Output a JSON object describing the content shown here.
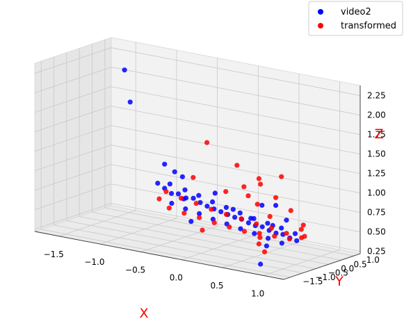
{
  "chart_data": {
    "type": "scatter",
    "title": "",
    "projection": "3d",
    "grid": true,
    "legend_placement": "top-right",
    "axis_label_color": "#ff0000",
    "xlabel": "X",
    "ylabel": "Y",
    "zlabel": "Z",
    "xlim": [
      -1.8,
      1.25
    ],
    "ylim": [
      -1.75,
      1.25
    ],
    "zlim": [
      0.22,
      2.38
    ],
    "x_ticks": [
      "−1.5",
      "−1.0",
      "−0.5",
      "0.0",
      "0.5",
      "1.0"
    ],
    "y_ticks": [
      "−1.5",
      "−1.0",
      "−0.5",
      "0.0",
      "0.5",
      "1.0"
    ],
    "z_ticks": [
      "0.25",
      "0.50",
      "0.75",
      "1.00",
      "1.25",
      "1.50",
      "1.75",
      "2.00",
      "2.25"
    ],
    "series": [
      {
        "name": "video2",
        "color": "#0000ff",
        "points": [
          [
            -1.45,
            0.65,
            2.1
          ],
          [
            -1.35,
            0.55,
            1.72
          ],
          [
            0.9,
            -1.3,
            0.53
          ],
          [
            0.95,
            -1.7,
            0.35
          ],
          [
            -0.85,
            0.3,
            1.05
          ],
          [
            -0.72,
            0.28,
            0.98
          ],
          [
            -0.6,
            0.2,
            0.95
          ],
          [
            -0.95,
            0.35,
            0.78
          ],
          [
            -0.85,
            0.3,
            0.74
          ],
          [
            -0.75,
            0.25,
            0.7
          ],
          [
            -0.65,
            0.2,
            0.72
          ],
          [
            -0.55,
            0.18,
            0.69
          ],
          [
            -0.45,
            0.15,
            0.71
          ],
          [
            -0.35,
            0.1,
            0.68
          ],
          [
            -0.25,
            0.05,
            0.66
          ],
          [
            -0.15,
            0.0,
            0.65
          ],
          [
            -0.05,
            -0.05,
            0.64
          ],
          [
            0.05,
            -0.1,
            0.63
          ],
          [
            0.15,
            -0.15,
            0.62
          ],
          [
            0.25,
            -0.2,
            0.62
          ],
          [
            0.35,
            -0.25,
            0.6
          ],
          [
            0.45,
            -0.3,
            0.59
          ],
          [
            0.55,
            -0.35,
            0.6
          ],
          [
            0.65,
            -0.4,
            0.58
          ],
          [
            0.75,
            -0.45,
            0.57
          ],
          [
            0.85,
            -0.5,
            0.58
          ],
          [
            0.95,
            -0.55,
            0.56
          ],
          [
            1.05,
            -0.6,
            0.55
          ],
          [
            -0.8,
            0.35,
            0.8
          ],
          [
            -0.6,
            0.3,
            0.77
          ],
          [
            -0.4,
            0.2,
            0.75
          ],
          [
            -0.2,
            0.1,
            0.72
          ],
          [
            0.0,
            0.0,
            0.7
          ],
          [
            0.2,
            -0.1,
            0.68
          ],
          [
            0.4,
            -0.2,
            0.66
          ],
          [
            0.6,
            -0.3,
            0.65
          ],
          [
            0.8,
            -0.4,
            0.64
          ],
          [
            1.0,
            -0.5,
            0.62
          ],
          [
            -0.7,
            0.1,
            0.6
          ],
          [
            -0.5,
            0.0,
            0.58
          ],
          [
            -0.3,
            -0.1,
            0.57
          ],
          [
            -0.1,
            -0.2,
            0.55
          ],
          [
            0.1,
            -0.3,
            0.54
          ],
          [
            0.3,
            -0.4,
            0.53
          ],
          [
            0.5,
            -0.5,
            0.52
          ],
          [
            0.7,
            -0.6,
            0.51
          ],
          [
            0.9,
            -0.7,
            0.5
          ],
          [
            -0.4,
            -0.1,
            0.45
          ],
          [
            0.5,
            -0.2,
            0.85
          ],
          [
            0.7,
            -0.3,
            0.9
          ],
          [
            -0.2,
            0.2,
            0.82
          ],
          [
            0.3,
            0.0,
            0.62
          ],
          [
            0.6,
            -0.1,
            0.6
          ],
          [
            -0.6,
            0.25,
            0.66
          ],
          [
            0.1,
            -0.05,
            0.7
          ],
          [
            0.8,
            -0.2,
            0.72
          ]
        ]
      },
      {
        "name": "transformed",
        "color": "#ff0000",
        "points": [
          [
            -0.3,
            0.2,
            1.45
          ],
          [
            0.8,
            -0.4,
            1.3
          ],
          [
            0.1,
            0.1,
            1.25
          ],
          [
            0.4,
            0.0,
            1.15
          ],
          [
            0.45,
            -0.1,
            1.1
          ],
          [
            -0.5,
            0.3,
            0.95
          ],
          [
            0.2,
            0.05,
            1.0
          ],
          [
            0.7,
            -0.3,
            1.0
          ],
          [
            0.3,
            -0.1,
            0.92
          ],
          [
            0.9,
            -0.35,
            0.88
          ],
          [
            1.1,
            -0.5,
            0.75
          ],
          [
            -0.2,
            -0.3,
            0.4
          ],
          [
            0.75,
            -0.9,
            0.38
          ],
          [
            0.65,
            -0.8,
            0.45
          ],
          [
            -0.8,
            0.2,
            0.72
          ],
          [
            -0.6,
            0.15,
            0.68
          ],
          [
            -0.4,
            0.1,
            0.66
          ],
          [
            -0.2,
            0.05,
            0.63
          ],
          [
            0.0,
            0.0,
            0.61
          ],
          [
            0.2,
            -0.05,
            0.6
          ],
          [
            0.4,
            -0.1,
            0.58
          ],
          [
            0.6,
            -0.15,
            0.57
          ],
          [
            0.8,
            -0.2,
            0.55
          ],
          [
            1.0,
            -0.25,
            0.54
          ],
          [
            -0.7,
            0.0,
            0.55
          ],
          [
            -0.5,
            -0.05,
            0.53
          ],
          [
            -0.3,
            -0.1,
            0.52
          ],
          [
            -0.1,
            -0.15,
            0.5
          ],
          [
            0.1,
            -0.2,
            0.49
          ],
          [
            0.3,
            -0.25,
            0.48
          ],
          [
            0.5,
            -0.3,
            0.5
          ],
          [
            0.7,
            -0.35,
            0.51
          ],
          [
            0.9,
            -0.4,
            0.52
          ],
          [
            1.1,
            -0.45,
            0.6
          ],
          [
            -0.9,
            0.25,
            0.6
          ],
          [
            0.55,
            -0.05,
            0.7
          ],
          [
            0.35,
            0.1,
            0.8
          ],
          [
            -0.1,
            0.3,
            0.85
          ],
          [
            0.95,
            -0.1,
            0.62
          ],
          [
            0.6,
            -0.6,
            0.5
          ]
        ]
      }
    ]
  }
}
